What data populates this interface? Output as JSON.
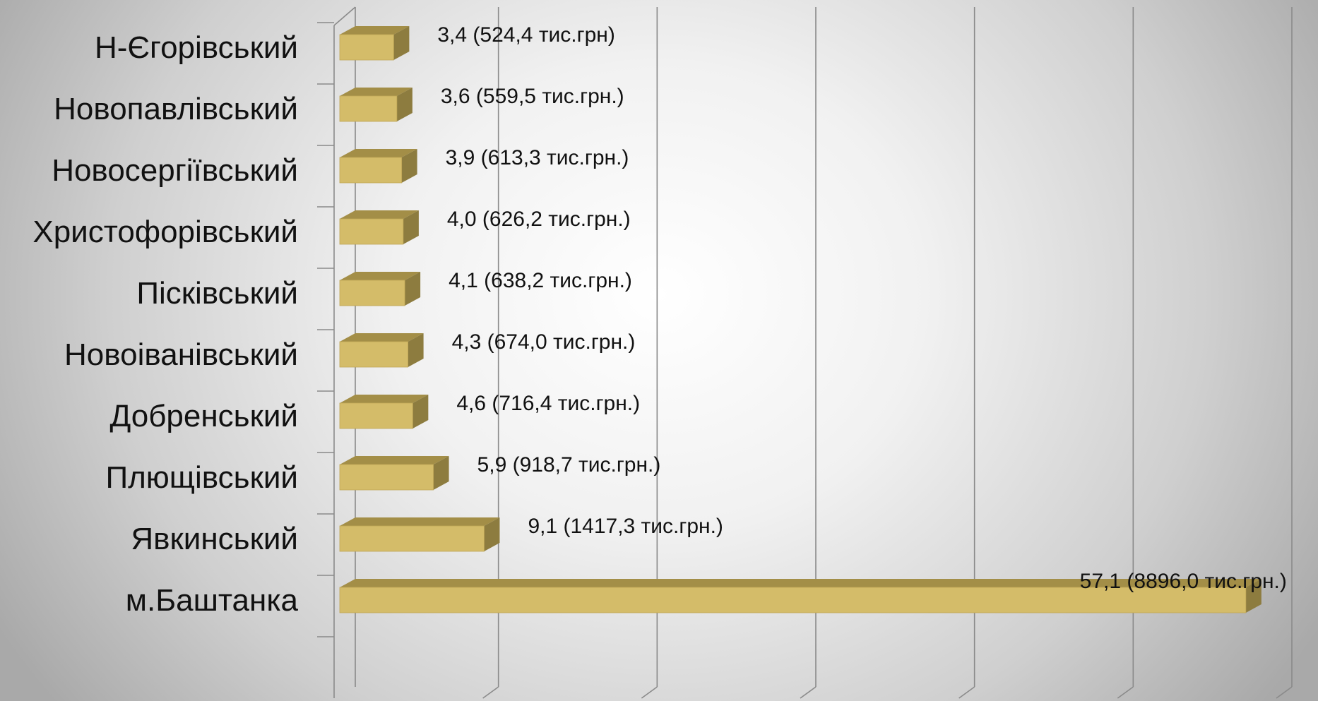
{
  "chart_data": {
    "type": "bar",
    "orientation": "horizontal",
    "style": "3d",
    "categories": [
      "Н-Єгорівський",
      "Новопавлівський",
      "Новосергіївський",
      "Христофорівський",
      "Пісківський",
      "Новоіванівський",
      "Добренський",
      "Плющівський",
      "Явкинський",
      "м.Баштанка"
    ],
    "values": [
      3.4,
      3.6,
      3.9,
      4.0,
      4.1,
      4.3,
      4.6,
      5.9,
      9.1,
      57.1
    ],
    "data_labels": [
      "3,4 (524,4 тис.грн)",
      "3,6 (559,5 тис.грн.)",
      "3,9 (613,3 тис.грн.)",
      "4,0 (626,2 тис.грн.)",
      "4,1 (638,2 тис.грн.)",
      "4,3 (674,0 тис.грн.)",
      "4,6 (716,4 тис.грн.)",
      "5,9 (918,7 тис.грн.)",
      "9,1 (1417,3 тис.грн.)",
      "57,1 (8896,0 тис.грн.)"
    ],
    "title": "",
    "xlabel": "",
    "ylabel": "",
    "xlim": [
      0,
      60
    ],
    "grid": true,
    "legend": "none",
    "colors": {
      "bar_front": "#D4BC69",
      "bar_top": "#A38E47",
      "bar_side": "#8D7C3F",
      "gridline": "#8A8A8A"
    }
  }
}
